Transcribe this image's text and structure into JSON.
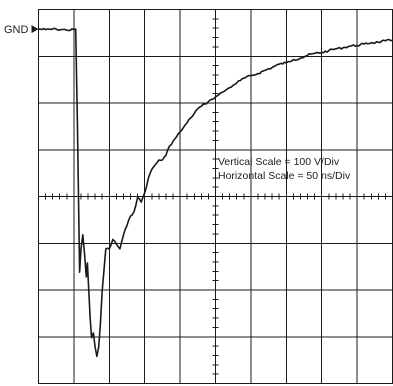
{
  "chart_data": {
    "type": "line",
    "marker_label": "GND",
    "annotations": [
      "Vertical Scale = 100 V/Div",
      "Horizontal Scale = 50 ns/Div"
    ],
    "grid": true,
    "x_divisions": 10,
    "y_divisions": 8,
    "series": [
      {
        "color": "#1a1a1a",
        "x": [
          0.0,
          0.2,
          0.5,
          0.8,
          1.0,
          1.05,
          1.1,
          1.13,
          1.16,
          1.2,
          1.25,
          1.3,
          1.35,
          1.38,
          1.42,
          1.46,
          1.5,
          1.55,
          1.6,
          1.65,
          1.7,
          1.75,
          1.8,
          1.9,
          2.0,
          2.1,
          2.2,
          2.3,
          2.4,
          2.5,
          2.6,
          2.7,
          2.8,
          2.9,
          3.0,
          3.1,
          3.2,
          3.3,
          3.4,
          3.5,
          3.6,
          3.7,
          3.8,
          3.9,
          4.0,
          4.1,
          4.2,
          4.3,
          4.4,
          4.5,
          4.6,
          4.7,
          4.8,
          4.9,
          5.0,
          5.1,
          5.2,
          5.3,
          5.4,
          5.5,
          5.6,
          5.7,
          5.8,
          6.0,
          6.2,
          6.4,
          6.6,
          6.8,
          7.0,
          7.2,
          7.4,
          7.6,
          7.8,
          8.0,
          8.2,
          8.4,
          8.6,
          8.8,
          9.0,
          9.2,
          9.4,
          9.6,
          9.8,
          10.0
        ],
        "y": [
          0.0,
          0.01,
          0.0,
          0.02,
          0.01,
          0.0,
          2.0,
          3.6,
          5.2,
          4.7,
          4.4,
          4.8,
          5.3,
          5.0,
          5.6,
          6.2,
          6.6,
          6.5,
          6.8,
          7.0,
          6.8,
          6.3,
          5.6,
          4.7,
          4.7,
          4.5,
          4.6,
          4.7,
          4.4,
          4.2,
          4.0,
          3.9,
          3.6,
          3.7,
          3.5,
          3.2,
          3.0,
          2.9,
          2.8,
          2.8,
          2.7,
          2.5,
          2.4,
          2.3,
          2.2,
          2.1,
          2.0,
          1.9,
          1.8,
          1.7,
          1.65,
          1.6,
          1.55,
          1.5,
          1.45,
          1.4,
          1.35,
          1.3,
          1.25,
          1.2,
          1.15,
          1.1,
          1.05,
          1.0,
          0.95,
          0.88,
          0.82,
          0.75,
          0.72,
          0.65,
          0.62,
          0.56,
          0.52,
          0.5,
          0.46,
          0.42,
          0.4,
          0.36,
          0.35,
          0.32,
          0.29,
          0.28,
          0.25,
          0.24
        ]
      }
    ]
  },
  "colors": {
    "trace": "#1a1a1a",
    "grid": "#1a1a1a",
    "background": "#ffffff"
  }
}
